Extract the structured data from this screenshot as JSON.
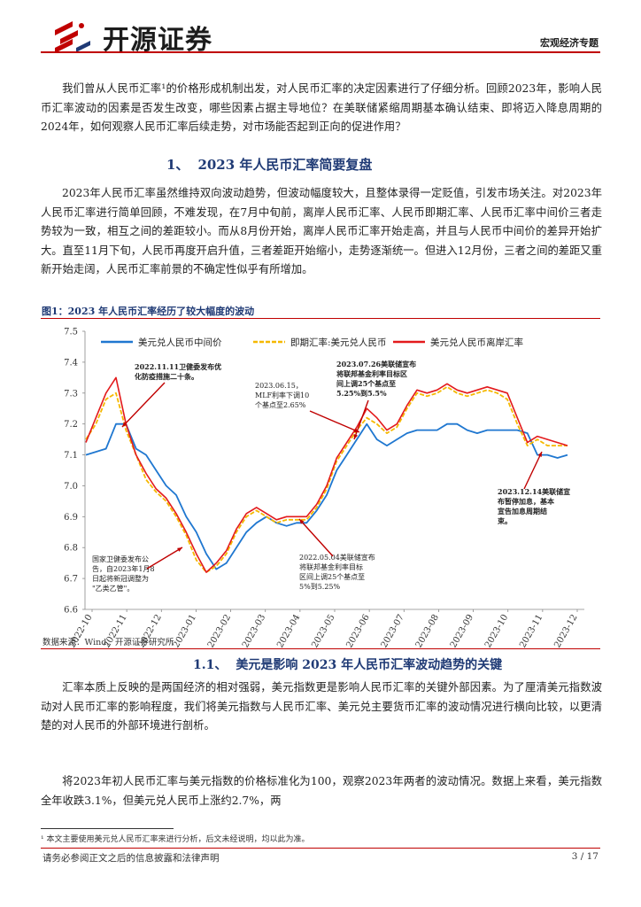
{
  "header": {
    "brand": "开源证券",
    "report_type": "宏观经济专题"
  },
  "intro": "我们曾从人民币汇率¹的价格形成机制出发，对人民币汇率的决定因素进行了仔细分析。回顾2023年，影响人民币汇率波动的因素是否发生改变，哪些因素占据主导地位？在美联储紧缩周期基本确认结束、即将迈入降息周期的2024年，如何观察人民币汇率后续走势，对市场能否起到正向的促进作用？",
  "section1": {
    "num": "1、",
    "title": "2023 年人民币汇率简要复盘"
  },
  "para1": "2023年人民币汇率虽然维持双向波动趋势，但波动幅度较大，且整体录得一定贬值，引发市场关注。对2023年人民币汇率进行简单回顾，不难发现，在7月中旬前，离岸人民币汇率、人民币即期汇率、人民币汇率中间价三者走势较为一致，相互之间的差距较小。而从8月份开始，离岸人民币汇率开始走高，并且与人民币中间价的差异开始扩大。直至11月下旬，人民币再度开启升值，三者差距开始缩小，走势逐渐统一。但进入12月份，三者之间的差距又重新开始走阔，人民币汇率前景的不确定性似乎有所增加。",
  "figure": {
    "title": "图1：2023 年人民币汇率经历了较大幅度的波动",
    "source": "数据来源：Wind、开源证券研究所"
  },
  "chart_data": {
    "type": "line",
    "ylim": [
      6.6,
      7.5
    ],
    "yticks": [
      "7.5",
      "7.4",
      "7.3",
      "7.2",
      "7.1",
      "7.0",
      "6.9",
      "6.8",
      "6.7",
      "6.6"
    ],
    "xticks": [
      "2022-10",
      "2022-11",
      "2022-12",
      "2023-01",
      "2023-02",
      "2023-03",
      "2023-04",
      "2023-05",
      "2023-06",
      "2023-07",
      "2023-08",
      "2023-09",
      "2023-10",
      "2023-11",
      "2023-12"
    ],
    "series": [
      {
        "name": "美元兑人民币中间价",
        "color": "#1f77d0",
        "values": [
          7.1,
          7.11,
          7.12,
          7.2,
          7.2,
          7.12,
          7.1,
          7.05,
          7.0,
          6.97,
          6.9,
          6.85,
          6.78,
          6.73,
          6.75,
          6.8,
          6.85,
          6.88,
          6.9,
          6.88,
          6.87,
          6.88,
          6.88,
          6.92,
          6.97,
          7.05,
          7.1,
          7.15,
          7.2,
          7.15,
          7.13,
          7.15,
          7.17,
          7.18,
          7.18,
          7.18,
          7.2,
          7.2,
          7.18,
          7.17,
          7.18,
          7.18,
          7.18,
          7.18,
          7.17,
          7.1,
          7.1,
          7.09,
          7.1
        ]
      },
      {
        "name": "即期汇率:美元兑人民币",
        "color": "#f5b800",
        "values": [
          7.15,
          7.2,
          7.28,
          7.3,
          7.18,
          7.1,
          7.02,
          6.98,
          6.95,
          6.9,
          6.84,
          6.76,
          6.72,
          6.74,
          6.78,
          6.85,
          6.9,
          6.92,
          6.9,
          6.88,
          6.89,
          6.89,
          6.89,
          6.93,
          6.99,
          7.08,
          7.13,
          7.18,
          7.22,
          7.2,
          7.17,
          7.19,
          7.25,
          7.3,
          7.29,
          7.3,
          7.32,
          7.3,
          7.29,
          7.3,
          7.31,
          7.3,
          7.28,
          7.2,
          7.13,
          7.15,
          7.13,
          7.13,
          7.13
        ]
      },
      {
        "name": "美元兑人民币离岸汇率",
        "color": "#e31a1c",
        "values": [
          7.14,
          7.22,
          7.3,
          7.35,
          7.2,
          7.1,
          7.04,
          6.99,
          6.96,
          6.91,
          6.85,
          6.78,
          6.72,
          6.75,
          6.79,
          6.86,
          6.91,
          6.93,
          6.91,
          6.89,
          6.9,
          6.9,
          6.9,
          6.94,
          7.0,
          7.09,
          7.14,
          7.19,
          7.25,
          7.22,
          7.18,
          7.2,
          7.26,
          7.31,
          7.3,
          7.31,
          7.33,
          7.31,
          7.3,
          7.31,
          7.32,
          7.31,
          7.3,
          7.22,
          7.14,
          7.16,
          7.15,
          7.14,
          7.13
        ]
      }
    ]
  },
  "annotations": {
    "a1": "2022.11.11卫健委发布优化防疫措施二十条。",
    "a2a": "2023.06.15，",
    "a2b": "MLF利率下调10",
    "a2c": "个基点至2.65%",
    "a3a": "2023.07.26美联储宣布",
    "a3b": "将联邦基金利率目标区",
    "a3c": "间上调25个基点至",
    "a3d": "5.25%到5.5%",
    "a4a": "2023.12.14美联储宣",
    "a4b": "布暂停加息，基本",
    "a4c": "宣告加息周期结",
    "a4d": "束。",
    "a5a": "国家卫健委发布公",
    "a5b": "告，自2023年1月8",
    "a5c": "日起将新冠调整为",
    "a5d": "\"乙类乙管\"。",
    "a6a": "2022.05.04美联储宣布",
    "a6b": "将联邦基金利率目标",
    "a6c": "区间上调25个基点至",
    "a6d": "5%到5.25%"
  },
  "section11": {
    "num": "1.1、",
    "title": "美元是影响 2023 年人民币汇率波动趋势的关键"
  },
  "para2": "汇率本质上反映的是两国经济的相对强弱，美元指数更是影响人民币汇率的关键外部因素。为了厘清美元指数波动对人民币汇率的影响程度，我们将美元指数与人民币汇率、美元兑主要货币汇率的波动情况进行横向比较，以更清楚的对人民币的外部环境进行剖析。",
  "para3": "将2023年初人民币汇率与美元指数的价格标准化为100，观察2023年两者的波动情况。数据上来看，美元指数全年收跌3.1%，但美元兑人民币上涨约2.7%，两",
  "footnote": "¹ 本文主要使用美元兑人民币汇率来进行分析，后文未经说明，均以此为准。",
  "footer": {
    "disclaimer": "请务必参阅正文之后的信息披露和法律声明",
    "page": "3 / 17"
  }
}
